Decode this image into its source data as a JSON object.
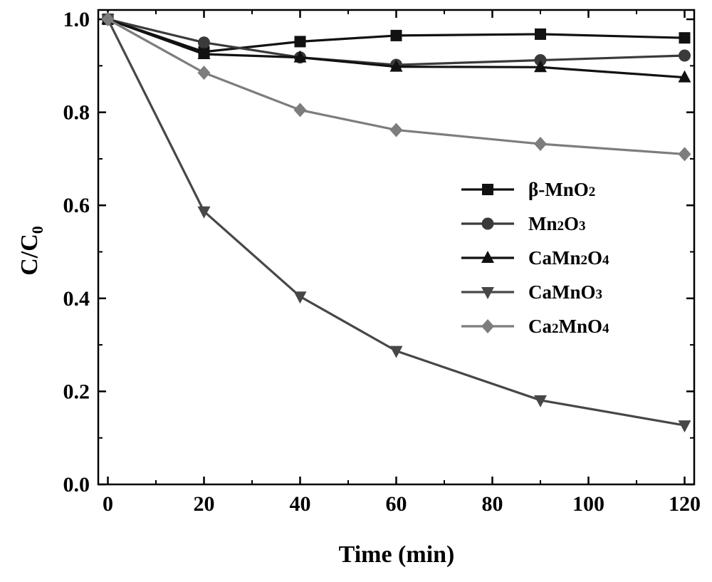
{
  "chart_data": {
    "type": "line",
    "xlabel": "Time (min)",
    "ylabel": "C/C",
    "ylabel_sub": "0",
    "xlim": [
      -2,
      122
    ],
    "ylim": [
      0.0,
      1.02
    ],
    "xticks": [
      "0",
      "20",
      "40",
      "60",
      "80",
      "100",
      "120"
    ],
    "yticks": [
      "0.0",
      "0.2",
      "0.4",
      "0.6",
      "0.8",
      "1.0"
    ],
    "grid": false,
    "legend_position": "center-right",
    "series": [
      {
        "name": "β-MnO",
        "name_sub": "2",
        "name_after": "",
        "marker": "square",
        "color": "#111111",
        "x": [
          0,
          20,
          40,
          60,
          90,
          120
        ],
        "y": [
          1.0,
          0.93,
          0.952,
          0.965,
          0.968,
          0.96
        ]
      },
      {
        "name": "Mn",
        "name_sub": "2",
        "name_after": "O",
        "name_sub2": "3",
        "marker": "circle",
        "color": "#3a3a3a",
        "x": [
          0,
          20,
          40,
          60,
          90,
          120
        ],
        "y": [
          1.0,
          0.95,
          0.918,
          0.902,
          0.912,
          0.922
        ]
      },
      {
        "name": "CaMn",
        "name_sub": "2",
        "name_after": "O",
        "name_sub2": "4",
        "marker": "triangle-up",
        "color": "#111111",
        "x": [
          0,
          20,
          40,
          60,
          90,
          120
        ],
        "y": [
          1.0,
          0.925,
          0.918,
          0.898,
          0.897,
          0.875
        ]
      },
      {
        "name": "CaMnO",
        "name_sub": "3",
        "name_after": "",
        "marker": "triangle-down",
        "color": "#474747",
        "x": [
          0,
          20,
          40,
          60,
          90,
          120
        ],
        "y": [
          1.0,
          0.587,
          0.404,
          0.287,
          0.181,
          0.127
        ]
      },
      {
        "name": "Ca",
        "name_sub": "2",
        "name_after": "MnO",
        "name_sub2": "4",
        "marker": "diamond",
        "color": "#7d7d7d",
        "x": [
          0,
          20,
          40,
          60,
          90,
          120
        ],
        "y": [
          1.0,
          0.885,
          0.805,
          0.762,
          0.732,
          0.71
        ]
      }
    ]
  }
}
